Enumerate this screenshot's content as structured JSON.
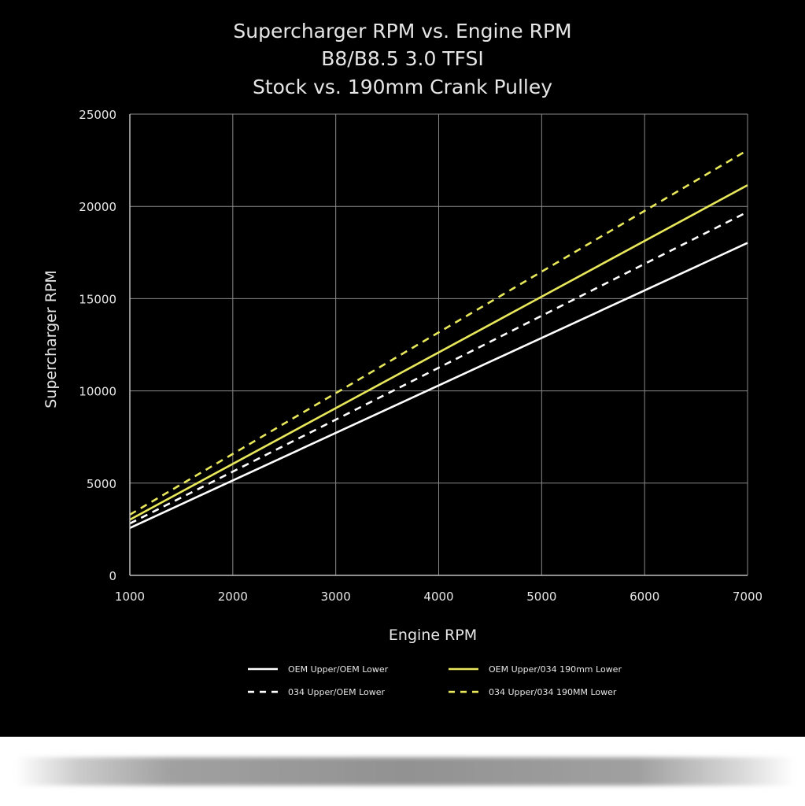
{
  "chart_data": {
    "type": "line",
    "title": [
      "Supercharger RPM vs. Engine RPM",
      "B8/B8.5 3.0 TFSI",
      "Stock vs. 190mm Crank Pulley"
    ],
    "xlabel": "Engine RPM",
    "ylabel": "Supercharger RPM",
    "xlim": [
      1000,
      7000
    ],
    "ylim": [
      0,
      25000
    ],
    "xticks": [
      "1000",
      "2000",
      "3000",
      "4000",
      "5000",
      "6000",
      "7000"
    ],
    "yticks": [
      "0",
      "5000",
      "10000",
      "15000",
      "20000",
      "25000"
    ],
    "grid": true,
    "legend_position": "bottom",
    "x": [
      1000,
      7000
    ],
    "series": [
      {
        "name": "OEM Upper/OEM Lower",
        "values": [
          2570,
          18020
        ],
        "color": "#ffffff",
        "dash": false
      },
      {
        "name": "OEM Upper/034 190mm Lower",
        "values": [
          3020,
          21150
        ],
        "color": "#e8e85a",
        "dash": false
      },
      {
        "name": "034 Upper/OEM Lower",
        "values": [
          2810,
          19700
        ],
        "color": "#ffffff",
        "dash": true
      },
      {
        "name": "034 Upper/034 190MM Lower",
        "values": [
          3290,
          23050
        ],
        "color": "#e8e85a",
        "dash": true
      }
    ]
  },
  "colors": {
    "background": "#000000",
    "grid": "#8a8a8a",
    "text": "#e6e6e6"
  }
}
